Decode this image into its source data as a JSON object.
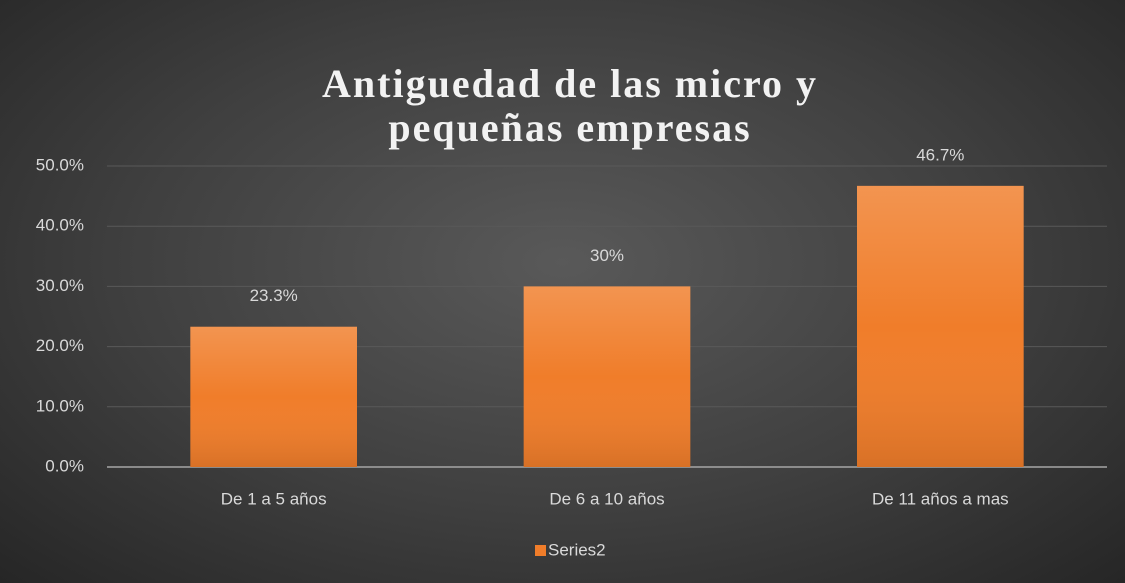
{
  "chart_data": {
    "type": "bar",
    "title": "Antiguedad de las micro y pequeñas empresas",
    "categories": [
      "De 1 a 5 años",
      "De 6 a 10 años",
      "De 11 años a mas"
    ],
    "series": [
      {
        "name": "Series2",
        "color": "#F07D2A",
        "values": [
          23.3,
          30,
          46.7
        ],
        "value_labels": [
          "23.3%",
          "30%",
          "46.7%"
        ]
      }
    ],
    "ylim": [
      0,
      50
    ],
    "yticks": [
      {
        "value": 0,
        "label": "0.0%"
      },
      {
        "value": 10,
        "label": "10.0%"
      },
      {
        "value": 20,
        "label": "20.0%"
      },
      {
        "value": 30,
        "label": "30.0%"
      },
      {
        "value": 40,
        "label": "40.0%"
      },
      {
        "value": 50,
        "label": "50.0%"
      }
    ],
    "grid": true,
    "legend": "bottom"
  }
}
